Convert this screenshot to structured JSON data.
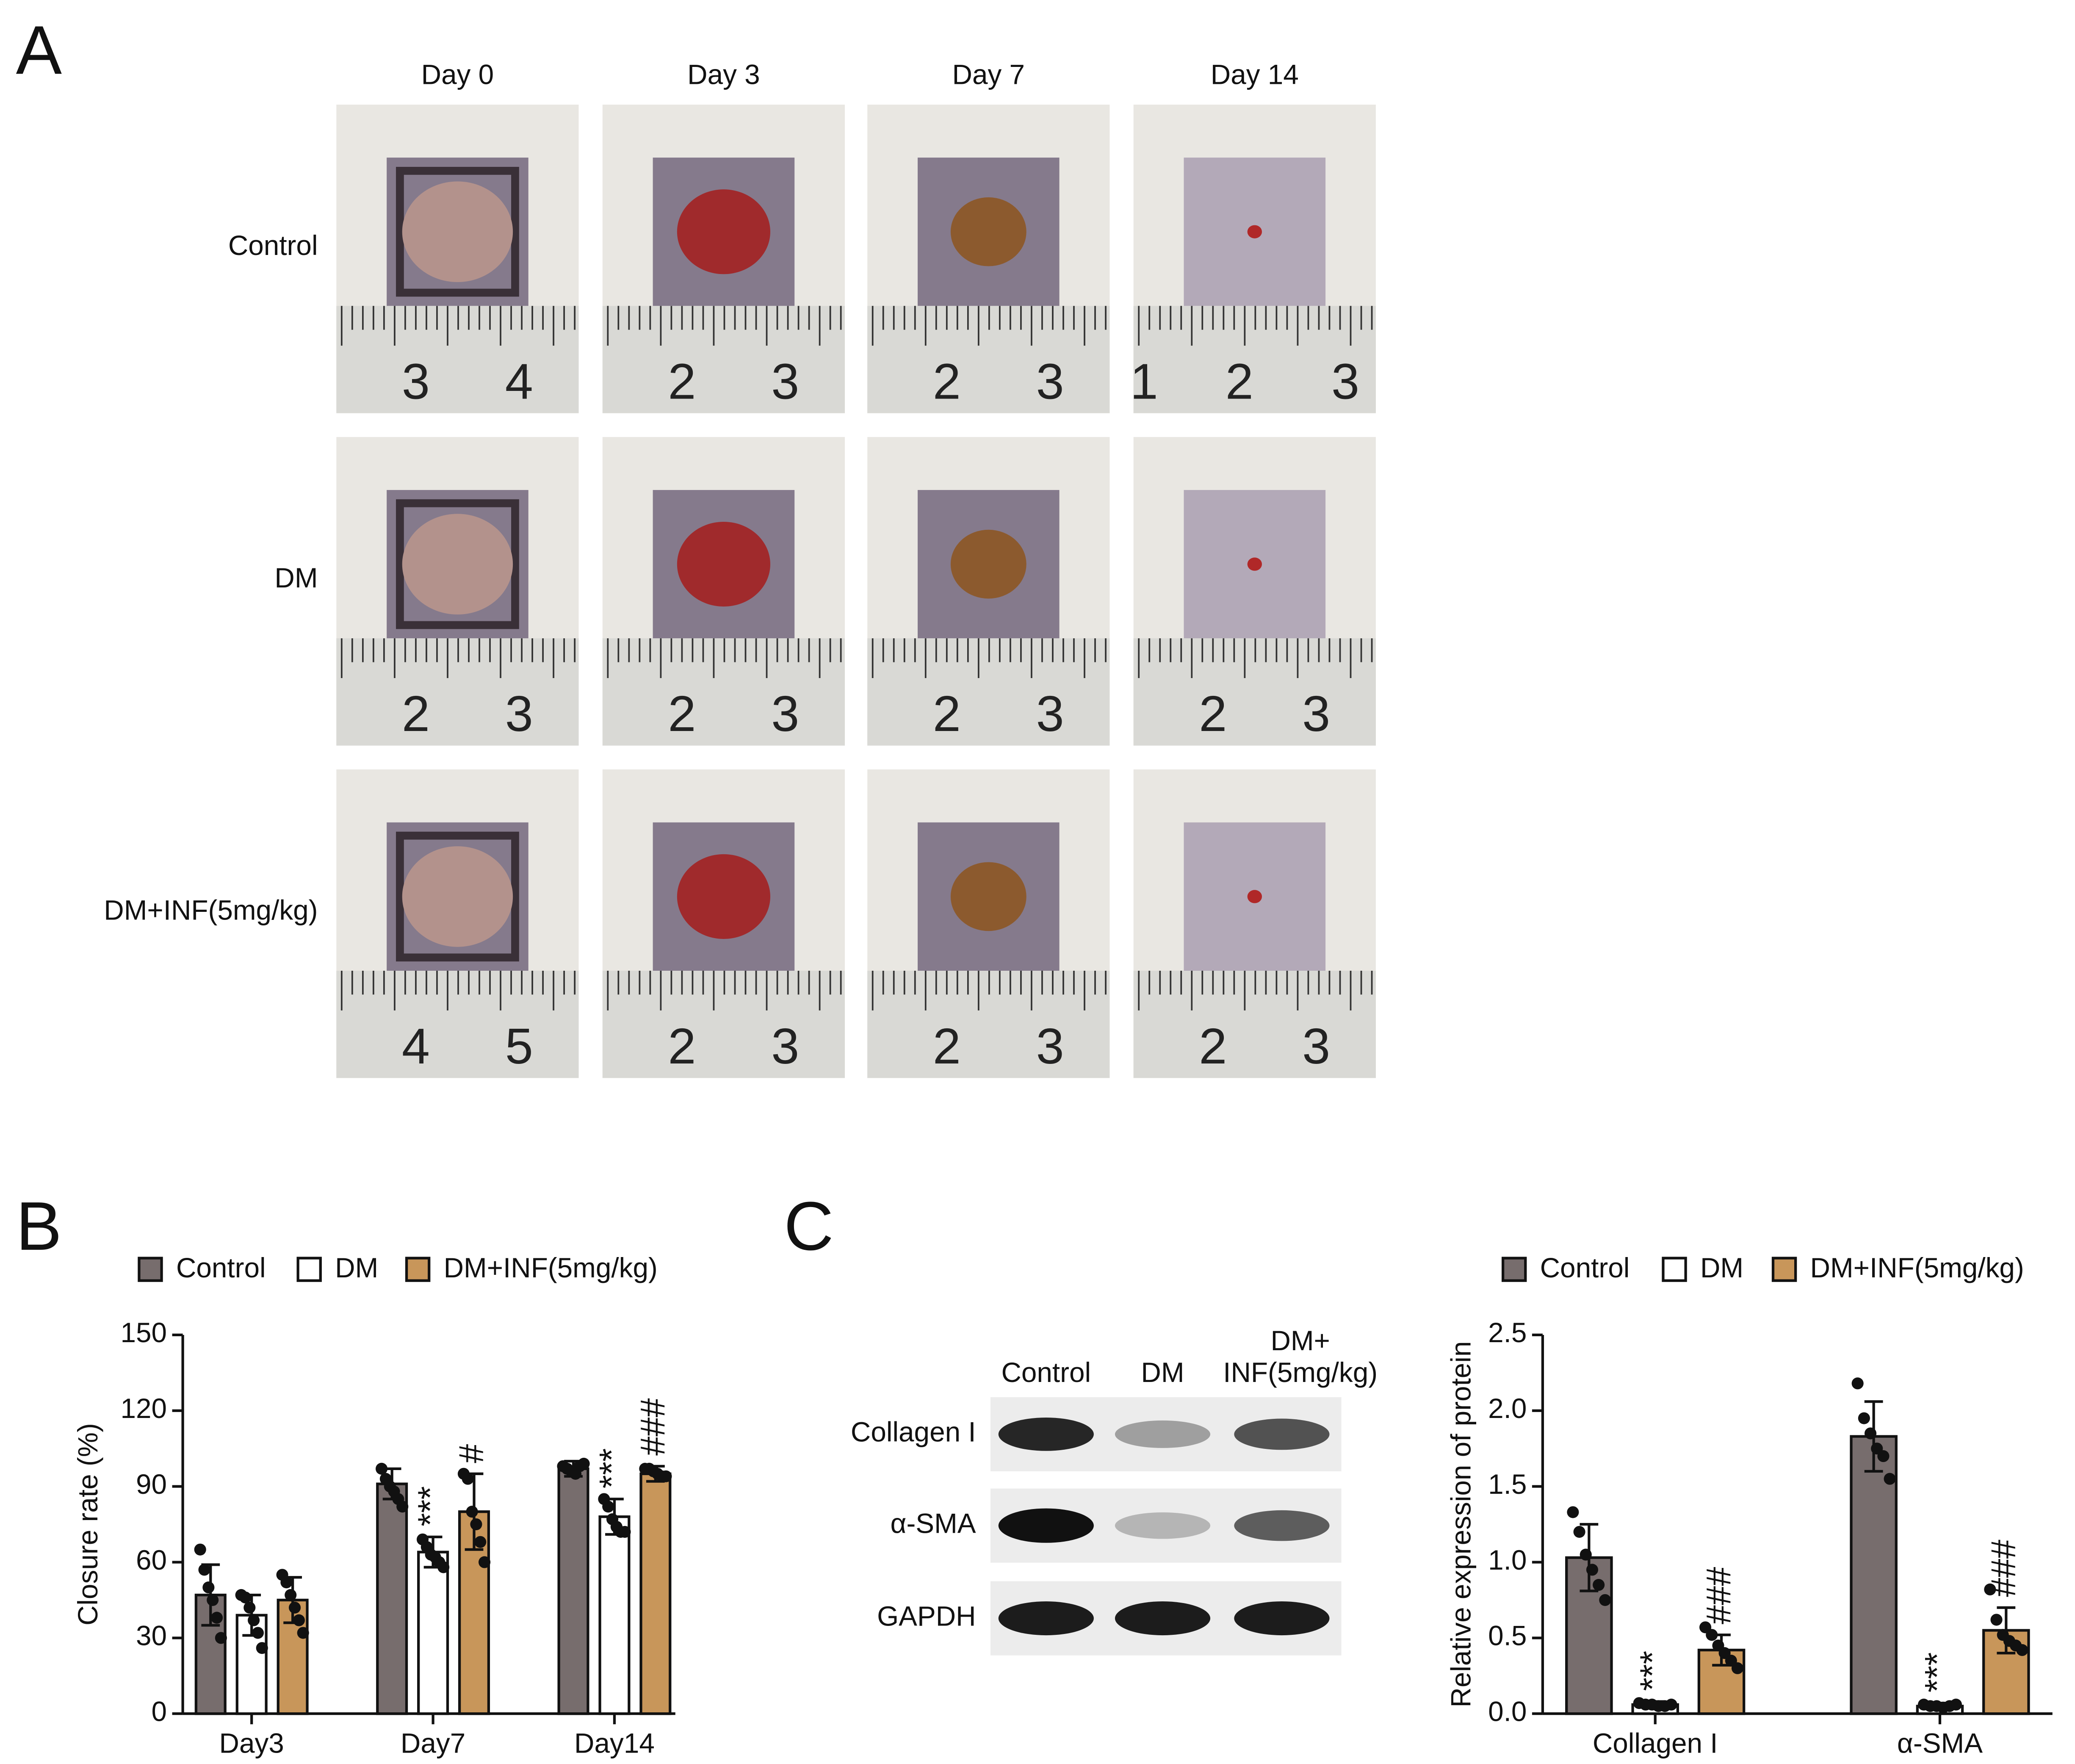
{
  "panel_a": {
    "label": "A",
    "columns": [
      "Day 0",
      "Day 3",
      "Day 7",
      "Day 14"
    ],
    "rows": [
      "Control",
      "DM",
      "DM+INF(5mg/kg)"
    ],
    "ruler_labels": [
      [
        [
          "3",
          "4"
        ],
        [
          "2",
          "3"
        ],
        [
          "2",
          "3"
        ],
        [
          "1",
          "2",
          "3"
        ]
      ],
      [
        [
          "2",
          "3"
        ],
        [
          "2",
          "3"
        ],
        [
          "2",
          "3"
        ],
        [
          "2",
          "3"
        ]
      ],
      [
        [
          "4",
          "5"
        ],
        [
          "2",
          "3"
        ],
        [
          "2",
          "3"
        ],
        [
          "2",
          "3"
        ]
      ]
    ]
  },
  "blot": {
    "label": "C",
    "columns": [
      [
        "Control"
      ],
      [
        "DM"
      ],
      [
        "DM+",
        "INF(5mg/kg)"
      ]
    ],
    "rows": [
      "Collagen I",
      "α-SMA",
      "GAPDH"
    ]
  },
  "chart_data": [
    {
      "type": "bar",
      "panel_label": "B",
      "ylabel": "Closure rate (%)",
      "categories": [
        "Day3",
        "Day7",
        "Day14"
      ],
      "series": [
        {
          "name": "Control",
          "color": "#776d6d",
          "values": [
            47,
            91,
            97
          ],
          "errors": [
            12,
            6,
            3
          ],
          "points": [
            [
              65,
              57,
              50,
              45,
              38,
              30
            ],
            [
              97,
              93,
              90,
              88,
              85,
              82
            ],
            [
              98,
              97,
              96,
              95,
              98,
              99
            ]
          ]
        },
        {
          "name": "DM",
          "color": "#ffffff",
          "values": [
            39,
            64,
            78
          ],
          "errors": [
            8,
            6,
            7
          ],
          "points": [
            [
              47,
              46,
              42,
              37,
              32,
              26
            ],
            [
              69,
              66,
              63,
              62,
              60,
              58
            ],
            [
              85,
              82,
              77,
              74,
              72,
              72
            ]
          ],
          "annotations": [
            null,
            "***",
            "***"
          ]
        },
        {
          "name": "DM+INF(5mg/kg)",
          "color": "#c8965a",
          "values": [
            45,
            80,
            95
          ],
          "errors": [
            9,
            15,
            3
          ],
          "points": [
            [
              55,
              52,
              47,
              42,
              37,
              32
            ],
            [
              95,
              93,
              80,
              75,
              68,
              60
            ],
            [
              97,
              97,
              96,
              95,
              94,
              94
            ]
          ],
          "annotations": [
            null,
            "#",
            "###"
          ]
        }
      ],
      "ylim": [
        0,
        150
      ],
      "yticks": [
        0,
        30,
        60,
        90,
        120,
        150
      ],
      "grid": false
    },
    {
      "type": "bar",
      "ylabel": "Relative expression of protein",
      "categories": [
        "Collagen I",
        "α-SMA"
      ],
      "series": [
        {
          "name": "Control",
          "color": "#776d6d",
          "values": [
            1.03,
            1.83
          ],
          "errors": [
            0.22,
            0.23
          ],
          "points": [
            [
              1.33,
              1.2,
              1.05,
              0.95,
              0.85,
              0.75
            ],
            [
              2.18,
              1.95,
              1.85,
              1.75,
              1.7,
              1.55
            ]
          ]
        },
        {
          "name": "DM",
          "color": "#ffffff",
          "values": [
            0.06,
            0.05
          ],
          "errors": [
            0.02,
            0.02
          ],
          "points": [
            [
              0.07,
              0.06,
              0.06,
              0.05,
              0.05,
              0.06
            ],
            [
              0.06,
              0.05,
              0.05,
              0.04,
              0.05,
              0.06
            ]
          ],
          "annotations": [
            "***",
            "***"
          ]
        },
        {
          "name": "DM+INF(5mg/kg)",
          "color": "#c8965a",
          "values": [
            0.42,
            0.55
          ],
          "errors": [
            0.1,
            0.15
          ],
          "points": [
            [
              0.57,
              0.52,
              0.45,
              0.4,
              0.35,
              0.3
            ],
            [
              0.82,
              0.62,
              0.52,
              0.48,
              0.45,
              0.42
            ]
          ],
          "annotations": [
            "###",
            "###"
          ]
        }
      ],
      "ylim": [
        0,
        2.5
      ],
      "yticks": [
        {
          "value": 0,
          "label": "0.0"
        },
        0.5,
        {
          "value": 1,
          "label": "1.0"
        },
        1.5,
        {
          "value": 2,
          "label": "2.0"
        },
        2.5
      ],
      "grid": false
    }
  ]
}
